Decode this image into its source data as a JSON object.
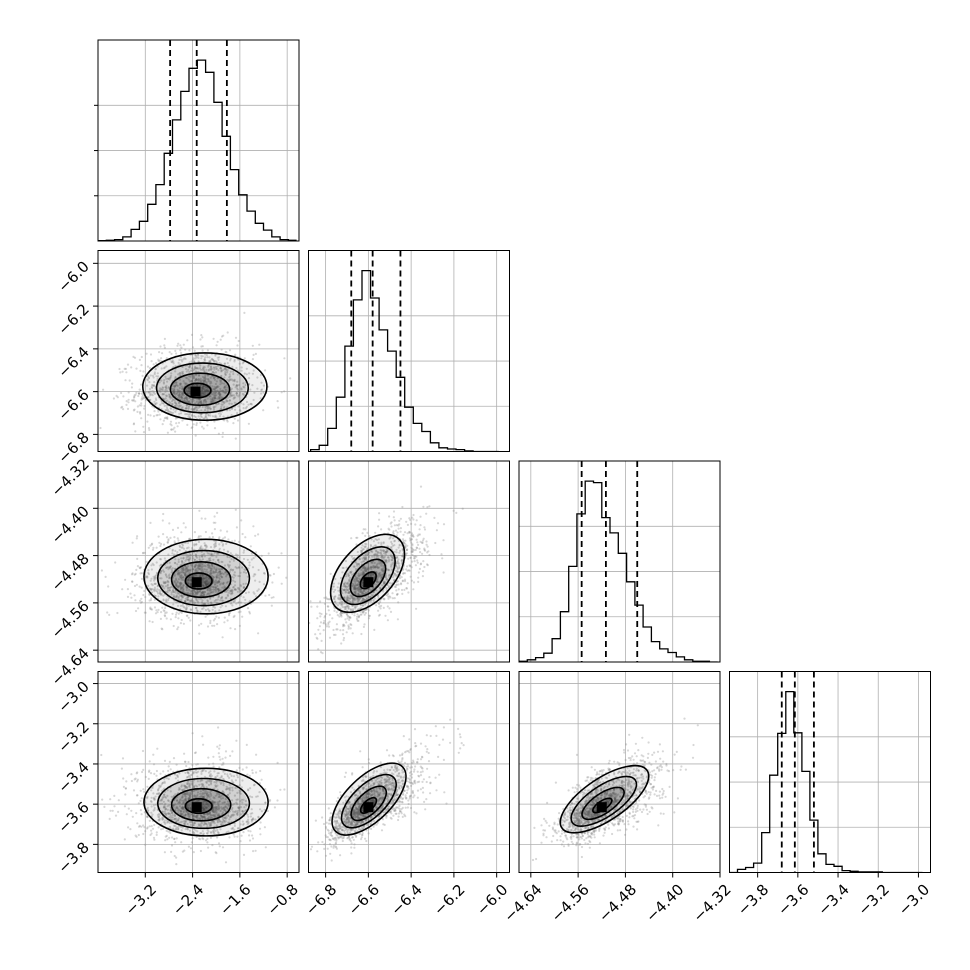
{
  "chart_data": {
    "type": "corner",
    "description_of_panels": "lower-triangle 2D histograms with contours, diagonal 1D histograms with dashed quantile lines",
    "grid": true,
    "colors": {
      "line": "#000000",
      "grid": "#b0b0b0",
      "points": "#8c8c8c"
    },
    "parameters": [
      {
        "range": [
          -4.0,
          -0.6
        ],
        "x_ticks": [
          "−3.2",
          "−2.4",
          "−1.6",
          "−0.8"
        ],
        "x_tick_values": [
          -3.2,
          -2.4,
          -1.6,
          -0.8
        ],
        "y_ticks": [],
        "y_tick_values": []
      },
      {
        "range": [
          -6.88,
          -5.94
        ],
        "x_ticks": [
          "−6.8",
          "−6.6",
          "−6.4",
          "−6.2",
          "−6.0"
        ],
        "x_tick_values": [
          -6.8,
          -6.6,
          -6.4,
          -6.2,
          -6.0
        ],
        "y_ticks": [
          "−6.0",
          "−6.2",
          "−6.4",
          "−6.6",
          "−6.8"
        ],
        "y_tick_values": [
          -6.0,
          -6.2,
          -6.4,
          -6.6,
          -6.8
        ]
      },
      {
        "range": [
          -4.66,
          -4.32
        ],
        "x_ticks": [
          "−4.64",
          "−4.56",
          "−4.48",
          "−4.40",
          "−4.32"
        ],
        "x_tick_values": [
          -4.64,
          -4.56,
          -4.48,
          -4.4,
          -4.32
        ],
        "y_ticks": [
          "−4.32",
          "−4.40",
          "−4.48",
          "−4.56",
          "−4.64"
        ],
        "y_tick_values": [
          -4.32,
          -4.4,
          -4.48,
          -4.56,
          -4.64
        ]
      },
      {
        "range": [
          -3.94,
          -2.94
        ],
        "x_ticks": [
          "−3.8",
          "−3.6",
          "−3.4",
          "−3.2",
          "−3.0"
        ],
        "x_tick_values": [
          -3.8,
          -3.6,
          -3.4,
          -3.2,
          -3.0
        ],
        "y_ticks": [
          "−3.0",
          "−3.2",
          "−3.4",
          "−3.6",
          "−3.8"
        ],
        "y_tick_values": [
          -3.0,
          -3.2,
          -3.4,
          -3.6,
          -3.8
        ]
      }
    ],
    "marginals": [
      {
        "quantiles": [
          -2.78,
          -2.33,
          -1.82
        ],
        "centers": [
          -3.93,
          -3.79,
          -3.65,
          -3.51,
          -3.37,
          -3.23,
          -3.09,
          -2.95,
          -2.81,
          -2.67,
          -2.53,
          -2.39,
          -2.25,
          -2.11,
          -1.97,
          -1.83,
          -1.69,
          -1.55,
          -1.41,
          -1.27,
          -1.13,
          -0.99,
          -0.85,
          -0.71
        ],
        "counts": [
          0.5,
          1,
          2,
          6,
          17,
          29,
          54,
          83,
          129,
          178,
          220,
          254,
          266,
          248,
          204,
          154,
          105,
          68,
          44,
          26,
          16,
          6,
          2,
          1
        ]
      },
      {
        "quantiles": [
          -6.68,
          -6.58,
          -6.45
        ],
        "centers": [
          -6.85,
          -6.81,
          -6.77,
          -6.73,
          -6.69,
          -6.65,
          -6.61,
          -6.57,
          -6.53,
          -6.49,
          -6.45,
          -6.41,
          -6.37,
          -6.33,
          -6.29,
          -6.25,
          -6.21,
          -6.17,
          -6.13,
          -6.09,
          -6.05,
          -6.01
        ],
        "counts": [
          3,
          10,
          37,
          87,
          169,
          243,
          290,
          246,
          195,
          161,
          119,
          71,
          45,
          32,
          14,
          6,
          4,
          3,
          1,
          0,
          0,
          0
        ]
      },
      {
        "quantiles": [
          -4.554,
          -4.513,
          -4.46
        ],
        "centers": [
          -4.653,
          -4.639,
          -4.625,
          -4.611,
          -4.597,
          -4.583,
          -4.569,
          -4.555,
          -4.541,
          -4.527,
          -4.513,
          -4.499,
          -4.485,
          -4.471,
          -4.457,
          -4.443,
          -4.429,
          -4.415,
          -4.401,
          -4.387,
          -4.373,
          -4.359,
          -4.345,
          -4.331
        ],
        "counts": [
          1,
          3,
          6,
          12,
          32,
          69,
          131,
          203,
          248,
          246,
          198,
          177,
          149,
          110,
          78,
          48,
          28,
          18,
          13,
          7,
          3,
          1,
          1,
          0
        ]
      },
      {
        "quantiles": [
          -3.68,
          -3.615,
          -3.52
        ],
        "centers": [
          -3.92,
          -3.88,
          -3.84,
          -3.8,
          -3.76,
          -3.72,
          -3.68,
          -3.64,
          -3.6,
          -3.56,
          -3.52,
          -3.48,
          -3.44,
          -3.4,
          -3.36,
          -3.32,
          -3.28,
          -3.24,
          -3.2,
          -3.16,
          -3.12,
          -3.08,
          -3.04,
          -3.0
        ],
        "counts": [
          0,
          5,
          8,
          15,
          64,
          156,
          223,
          290,
          224,
          162,
          84,
          30,
          13,
          10,
          3,
          2,
          1,
          1,
          1,
          0,
          0,
          0,
          0,
          0
        ]
      }
    ],
    "pairs": [
      {
        "x": 0,
        "y": 1,
        "mean": [
          -2.35,
          -6.6
        ],
        "sd": [
          0.5,
          0.075
        ],
        "corr": 0.05,
        "skew": [
          0,
          0.4
        ]
      },
      {
        "x": 0,
        "y": 2,
        "mean": [
          -2.33,
          -4.525
        ],
        "sd": [
          0.5,
          0.03
        ],
        "corr": 0.0,
        "skew": [
          0,
          0.4
        ]
      },
      {
        "x": 1,
        "y": 2,
        "mean": [
          -6.6,
          -4.525
        ],
        "sd": [
          0.09,
          0.035
        ],
        "corr": 0.7,
        "skew": [
          0.5,
          0.4
        ]
      },
      {
        "x": 0,
        "y": 3,
        "mean": [
          -2.33,
          -3.615
        ],
        "sd": [
          0.5,
          0.08
        ],
        "corr": 0.0,
        "skew": [
          0,
          0.5
        ]
      },
      {
        "x": 1,
        "y": 3,
        "mean": [
          -6.6,
          -3.615
        ],
        "sd": [
          0.09,
          0.085
        ],
        "corr": 0.75,
        "skew": [
          0.5,
          0.5
        ]
      },
      {
        "x": 2,
        "y": 3,
        "mean": [
          -4.52,
          -3.615
        ],
        "sd": [
          0.036,
          0.08
        ],
        "corr": 0.65,
        "skew": [
          0.4,
          0.5
        ]
      }
    ]
  }
}
